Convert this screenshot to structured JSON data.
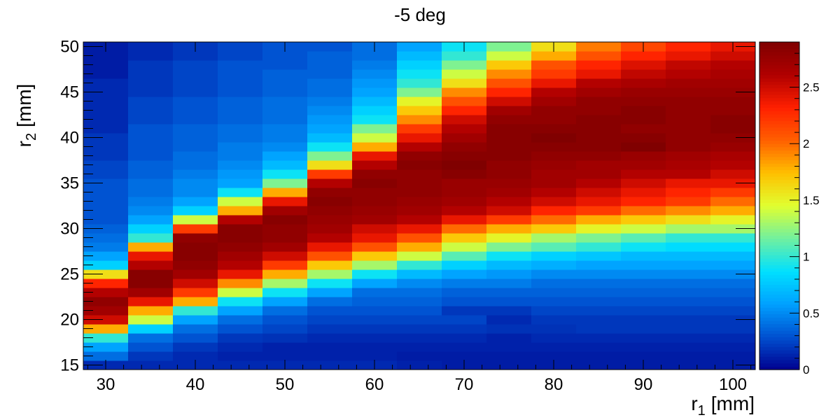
{
  "chart_data": {
    "type": "heatmap",
    "title": "-5 deg",
    "xlabel": "r",
    "xlabel_sub": "1",
    "xlabel_unit": "[mm]",
    "ylabel": "r",
    "ylabel_sub": "2",
    "ylabel_unit": "[mm]",
    "xlim": [
      27.5,
      102.5
    ],
    "ylim": [
      14.5,
      50.5
    ],
    "zlim": [
      0,
      2.9
    ],
    "x_ticks": [
      "30",
      "40",
      "50",
      "60",
      "70",
      "80",
      "90",
      "100"
    ],
    "y_ticks": [
      "15",
      "20",
      "25",
      "30",
      "35",
      "40",
      "45",
      "50"
    ],
    "z_ticks": [
      "0",
      "0.5",
      "1",
      "1.5",
      "2",
      "2.5"
    ],
    "x_bin_centers": [
      30,
      35,
      40,
      45,
      50,
      55,
      60,
      65,
      70,
      75,
      80,
      85,
      90,
      95,
      100
    ],
    "y_bin_centers": [
      15,
      16,
      17,
      18,
      19,
      20,
      21,
      22,
      23,
      24,
      25,
      26,
      27,
      28,
      29,
      30,
      31,
      32,
      33,
      34,
      35,
      36,
      37,
      38,
      39,
      40,
      41,
      42,
      43,
      44,
      45,
      46,
      47,
      48,
      49,
      50
    ],
    "grid": false,
    "colorbar": "right",
    "colormap": [
      "#00008f",
      "#0050d0",
      "#00a0ff",
      "#00e0ff",
      "#70f0a0",
      "#e0ff30",
      "#ffc000",
      "#ff6000",
      "#ff2000",
      "#b00000",
      "#800000"
    ],
    "z": [
      [
        0.15,
        0.15,
        0.15,
        0.15,
        0.15,
        0.15,
        0.15,
        0.12,
        0.1,
        0.1,
        0.1,
        0.1,
        0.1,
        0.1,
        0.1
      ],
      [
        0.4,
        0.2,
        0.15,
        0.12,
        0.12,
        0.12,
        0.12,
        0.1,
        0.1,
        0.1,
        0.1,
        0.1,
        0.1,
        0.1,
        0.1
      ],
      [
        0.6,
        0.3,
        0.2,
        0.15,
        0.12,
        0.12,
        0.12,
        0.12,
        0.12,
        0.12,
        0.12,
        0.12,
        0.12,
        0.12,
        0.12
      ],
      [
        1.0,
        0.4,
        0.3,
        0.2,
        0.18,
        0.15,
        0.15,
        0.15,
        0.15,
        0.12,
        0.15,
        0.15,
        0.15,
        0.15,
        0.15
      ],
      [
        1.8,
        0.8,
        0.4,
        0.3,
        0.25,
        0.2,
        0.2,
        0.2,
        0.2,
        0.18,
        0.18,
        0.2,
        0.2,
        0.2,
        0.2
      ],
      [
        2.5,
        1.4,
        0.6,
        0.4,
        0.3,
        0.25,
        0.25,
        0.25,
        0.25,
        0.15,
        0.2,
        0.2,
        0.2,
        0.2,
        0.2
      ],
      [
        2.7,
        1.8,
        1.0,
        0.6,
        0.4,
        0.3,
        0.3,
        0.3,
        0.2,
        0.2,
        0.25,
        0.25,
        0.25,
        0.25,
        0.25
      ],
      [
        2.8,
        2.4,
        1.8,
        0.9,
        0.6,
        0.4,
        0.35,
        0.35,
        0.3,
        0.3,
        0.3,
        0.3,
        0.3,
        0.3,
        0.3
      ],
      [
        2.6,
        2.7,
        2.2,
        1.4,
        0.9,
        0.6,
        0.4,
        0.4,
        0.35,
        0.35,
        0.35,
        0.35,
        0.35,
        0.35,
        0.35
      ],
      [
        2.3,
        2.85,
        2.5,
        1.9,
        1.3,
        0.9,
        0.6,
        0.5,
        0.45,
        0.45,
        0.4,
        0.4,
        0.4,
        0.4,
        0.4
      ],
      [
        1.6,
        2.85,
        2.7,
        2.4,
        1.8,
        1.3,
        0.9,
        0.7,
        0.6,
        0.55,
        0.5,
        0.5,
        0.5,
        0.5,
        0.5
      ],
      [
        0.8,
        2.6,
        2.8,
        2.6,
        2.2,
        1.7,
        1.3,
        1.0,
        0.8,
        0.7,
        0.65,
        0.6,
        0.6,
        0.6,
        0.6
      ],
      [
        0.6,
        2.4,
        2.85,
        2.7,
        2.5,
        2.1,
        1.7,
        1.4,
        1.1,
        0.9,
        0.8,
        0.75,
        0.7,
        0.7,
        0.7
      ],
      [
        0.45,
        1.8,
        2.85,
        2.8,
        2.7,
        2.4,
        2.1,
        1.8,
        1.4,
        1.2,
        1.1,
        1.0,
        0.9,
        0.85,
        0.85
      ],
      [
        0.4,
        1.0,
        2.8,
        2.85,
        2.8,
        2.6,
        2.4,
        2.1,
        1.7,
        1.5,
        1.3,
        1.2,
        1.1,
        1.0,
        1.0
      ],
      [
        0.35,
        0.8,
        2.2,
        2.85,
        2.8,
        2.7,
        2.5,
        2.4,
        2.0,
        1.8,
        1.7,
        1.5,
        1.4,
        1.3,
        1.3
      ],
      [
        0.3,
        0.6,
        1.4,
        2.6,
        2.85,
        2.75,
        2.7,
        2.6,
        2.4,
        2.2,
        2.0,
        1.8,
        1.7,
        1.6,
        1.5
      ],
      [
        0.3,
        0.5,
        0.8,
        1.8,
        2.7,
        2.8,
        2.75,
        2.7,
        2.6,
        2.5,
        2.3,
        2.2,
        2.0,
        1.9,
        1.8
      ],
      [
        0.3,
        0.45,
        0.6,
        1.4,
        2.4,
        2.85,
        2.8,
        2.75,
        2.7,
        2.6,
        2.5,
        2.4,
        2.3,
        2.2,
        2.0
      ],
      [
        0.3,
        0.4,
        0.5,
        0.9,
        1.8,
        2.8,
        2.8,
        2.8,
        2.75,
        2.7,
        2.6,
        2.5,
        2.4,
        2.3,
        2.2
      ],
      [
        0.3,
        0.4,
        0.5,
        0.6,
        1.2,
        2.6,
        2.85,
        2.8,
        2.75,
        2.75,
        2.7,
        2.6,
        2.5,
        2.4,
        2.4
      ],
      [
        0.25,
        0.35,
        0.45,
        0.55,
        0.9,
        2.2,
        2.8,
        2.8,
        2.85,
        2.8,
        2.7,
        2.7,
        2.6,
        2.6,
        2.5
      ],
      [
        0.25,
        0.35,
        0.4,
        0.5,
        0.7,
        1.6,
        2.6,
        2.85,
        2.9,
        2.8,
        2.75,
        2.7,
        2.7,
        2.65,
        2.6
      ],
      [
        0.2,
        0.3,
        0.4,
        0.45,
        0.6,
        1.2,
        2.4,
        2.8,
        2.85,
        2.85,
        2.8,
        2.8,
        2.75,
        2.7,
        2.65
      ],
      [
        0.2,
        0.3,
        0.35,
        0.45,
        0.5,
        0.9,
        1.8,
        2.6,
        2.8,
        2.85,
        2.85,
        2.85,
        2.9,
        2.8,
        2.75
      ],
      [
        0.2,
        0.3,
        0.35,
        0.4,
        0.45,
        0.7,
        1.4,
        2.4,
        2.7,
        2.85,
        2.9,
        2.85,
        2.85,
        2.8,
        2.8
      ],
      [
        0.15,
        0.3,
        0.35,
        0.4,
        0.45,
        0.6,
        1.2,
        2.2,
        2.6,
        2.85,
        2.85,
        2.85,
        2.8,
        2.8,
        2.85
      ],
      [
        0.15,
        0.25,
        0.3,
        0.35,
        0.4,
        0.55,
        0.9,
        1.9,
        2.5,
        2.8,
        2.8,
        2.85,
        2.85,
        2.8,
        2.85
      ],
      [
        0.15,
        0.25,
        0.3,
        0.35,
        0.4,
        0.5,
        0.8,
        1.7,
        2.3,
        2.7,
        2.8,
        2.8,
        2.85,
        2.8,
        2.8
      ],
      [
        0.15,
        0.25,
        0.3,
        0.35,
        0.4,
        0.45,
        0.7,
        1.5,
        2.1,
        2.5,
        2.7,
        2.8,
        2.8,
        2.8,
        2.8
      ],
      [
        0.15,
        0.2,
        0.25,
        0.3,
        0.35,
        0.4,
        0.6,
        1.2,
        1.9,
        2.3,
        2.6,
        2.7,
        2.75,
        2.75,
        2.75
      ],
      [
        0.15,
        0.2,
        0.25,
        0.3,
        0.35,
        0.4,
        0.55,
        1.0,
        1.6,
        2.1,
        2.4,
        2.6,
        2.65,
        2.7,
        2.7
      ],
      [
        0.1,
        0.2,
        0.25,
        0.3,
        0.35,
        0.35,
        0.5,
        0.9,
        1.4,
        1.9,
        2.2,
        2.4,
        2.55,
        2.6,
        2.65
      ],
      [
        0.1,
        0.2,
        0.25,
        0.3,
        0.3,
        0.35,
        0.45,
        0.8,
        1.2,
        1.7,
        2.1,
        2.3,
        2.45,
        2.55,
        2.6
      ],
      [
        0.1,
        0.15,
        0.2,
        0.25,
        0.3,
        0.35,
        0.4,
        0.7,
        1.0,
        1.4,
        1.8,
        2.1,
        2.3,
        2.4,
        2.5
      ],
      [
        0.1,
        0.15,
        0.2,
        0.25,
        0.3,
        0.3,
        0.4,
        0.6,
        0.9,
        1.2,
        1.6,
        1.95,
        2.15,
        2.3,
        2.4
      ]
    ]
  }
}
